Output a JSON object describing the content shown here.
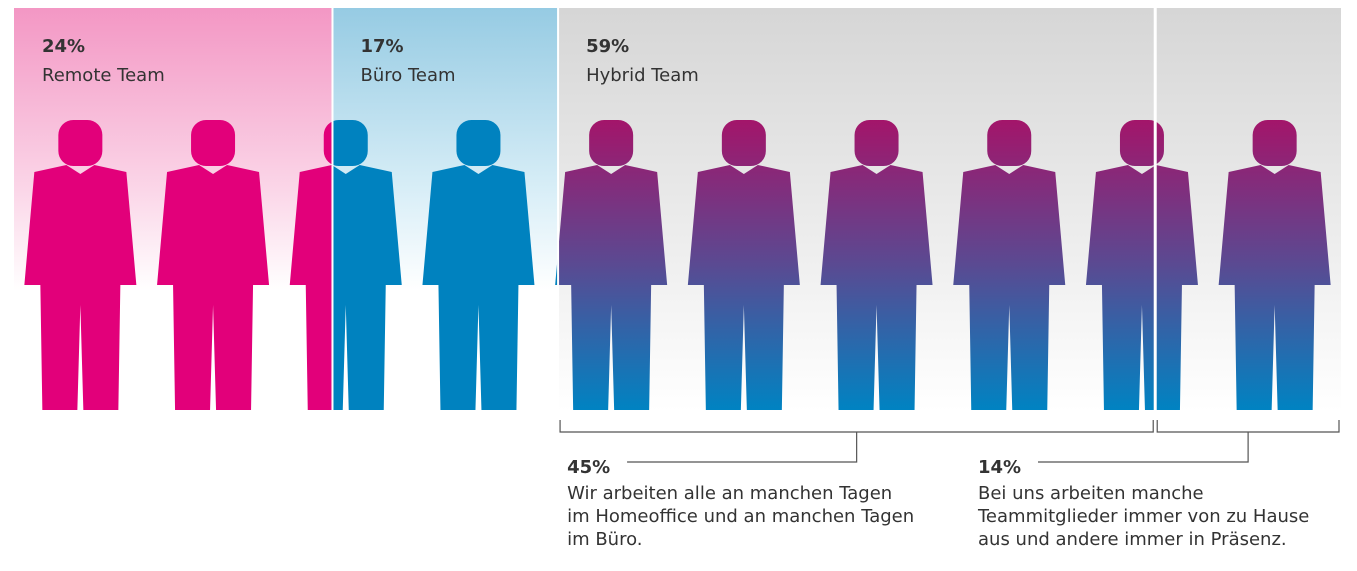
{
  "chart_data": {
    "type": "pictogram",
    "categories": [
      "Remote Team",
      "Büro Team",
      "Hybrid Team"
    ],
    "values": [
      24,
      17,
      59
    ],
    "value_labels": [
      "24%",
      "17%",
      "59%"
    ],
    "colors": [
      "#e2007a",
      "#0082bf",
      "#9b1b6e"
    ],
    "breakdown": {
      "values": [
        45,
        14
      ],
      "value_labels": [
        "45%",
        "14%"
      ],
      "descriptions": [
        [
          "Wir arbeiten alle an manchen Tagen",
          "im Homeoffice und an manchen Tagen",
          "im Büro."
        ],
        [
          "Bei uns arbeiten manche",
          "Teammitglieder immer von zu Hause",
          "aus und andere immer in Präsenz."
        ]
      ]
    }
  }
}
